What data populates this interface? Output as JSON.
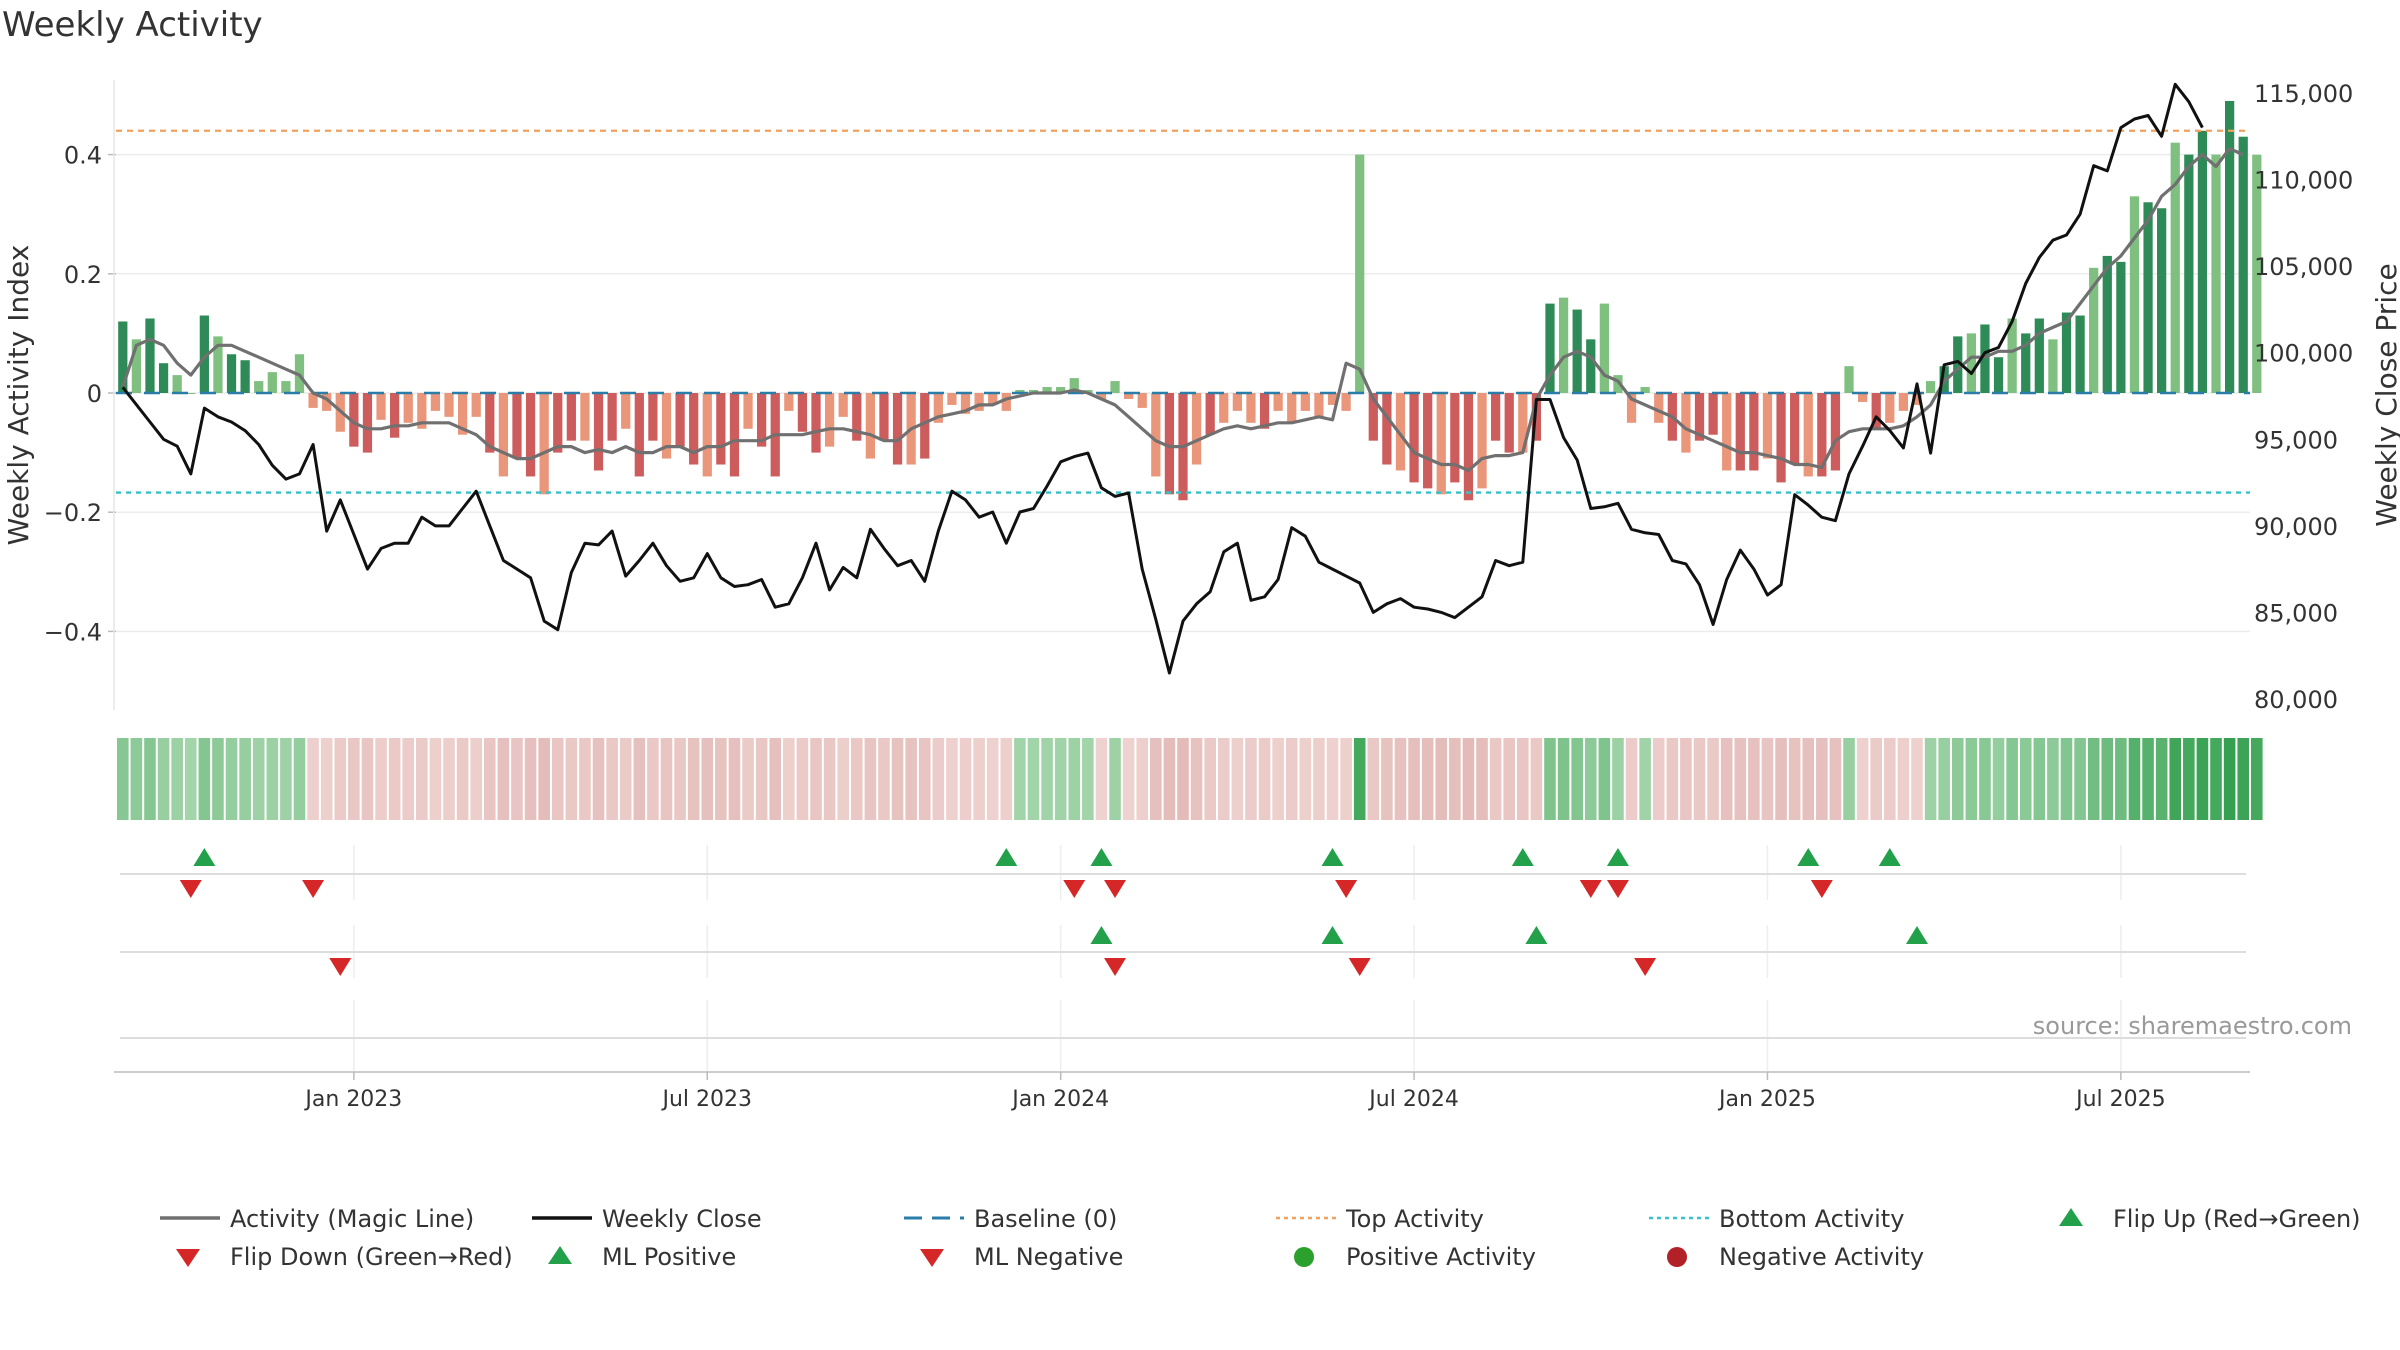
{
  "chart_data": {
    "type": "bar",
    "title": "Weekly Activity",
    "ylabel_left": "Weekly Activity Index",
    "ylabel_right": "Weekly Close Price",
    "source": "source: sharemaestro.com",
    "left_axis": {
      "ylim": [
        -0.53,
        0.53
      ],
      "ticks": [
        0.4,
        0.2,
        0,
        -0.2,
        -0.4
      ],
      "tick_labels": [
        "0.4",
        "0.2",
        "0",
        "−0.2",
        "−0.4"
      ]
    },
    "right_axis": {
      "ylim": [
        79500,
        115500
      ],
      "ticks": [
        115000,
        110000,
        105000,
        100000,
        95000,
        90000,
        85000,
        80000
      ],
      "tick_labels": [
        "115,000",
        "110,000",
        "105,000",
        "100,000",
        "95,000",
        "90,000",
        "85,000",
        "80,000"
      ]
    },
    "x_ticks": [
      {
        "label": "Jan 2023",
        "week": 17
      },
      {
        "label": "Jul 2023",
        "week": 43
      },
      {
        "label": "Jan 2024",
        "week": 69
      },
      {
        "label": "Jul 2024",
        "week": 95
      },
      {
        "label": "Jan 2025",
        "week": 121
      },
      {
        "label": "Jul 2025",
        "week": 147
      }
    ],
    "weeks": 157,
    "top_activity": 0.44,
    "bottom_activity": -0.167,
    "baseline": 0,
    "activity": [
      0.12,
      0.09,
      0.125,
      0.05,
      0.03,
      0.0,
      0.13,
      0.095,
      0.065,
      0.055,
      0.02,
      0.035,
      0.02,
      0.065,
      -0.025,
      -0.03,
      -0.065,
      -0.09,
      -0.1,
      -0.045,
      -0.075,
      -0.05,
      -0.06,
      -0.03,
      -0.04,
      -0.07,
      -0.04,
      -0.1,
      -0.14,
      -0.11,
      -0.14,
      -0.17,
      -0.1,
      -0.08,
      -0.08,
      -0.13,
      -0.08,
      -0.06,
      -0.14,
      -0.08,
      -0.11,
      -0.09,
      -0.12,
      -0.14,
      -0.12,
      -0.14,
      -0.06,
      -0.09,
      -0.14,
      -0.03,
      -0.065,
      -0.1,
      -0.09,
      -0.04,
      -0.08,
      -0.11,
      -0.08,
      -0.12,
      -0.12,
      -0.11,
      -0.05,
      -0.02,
      -0.035,
      -0.03,
      -0.02,
      -0.03,
      0.005,
      0.005,
      0.01,
      0.01,
      0.025,
      0.005,
      -0.01,
      0.02,
      -0.01,
      -0.025,
      -0.14,
      -0.17,
      -0.18,
      -0.12,
      -0.07,
      -0.05,
      -0.03,
      -0.05,
      -0.06,
      -0.03,
      -0.05,
      -0.03,
      -0.04,
      -0.02,
      -0.03,
      0.4,
      -0.08,
      -0.12,
      -0.13,
      -0.15,
      -0.16,
      -0.17,
      -0.15,
      -0.18,
      -0.16,
      -0.08,
      -0.1,
      -0.1,
      -0.08,
      0.15,
      0.16,
      0.14,
      0.09,
      0.15,
      0.03,
      -0.05,
      0.01,
      -0.05,
      -0.08,
      -0.1,
      -0.08,
      -0.07,
      -0.13,
      -0.13,
      -0.13,
      -0.11,
      -0.15,
      -0.12,
      -0.14,
      -0.14,
      -0.13,
      0.045,
      -0.015,
      -0.06,
      -0.05,
      -0.03,
      -0.02,
      0.02,
      0.045,
      0.095,
      0.1,
      0.115,
      0.06,
      0.125,
      0.1,
      0.125,
      0.09,
      0.135,
      0.13,
      0.21,
      0.23,
      0.22,
      0.33,
      0.32,
      0.31,
      0.42,
      0.4,
      0.44,
      0.4,
      0.49,
      0.43,
      0.4
    ],
    "magic_line": [
      0.01,
      0.08,
      0.09,
      0.08,
      0.05,
      0.03,
      0.06,
      0.08,
      0.08,
      0.07,
      0.06,
      0.05,
      0.04,
      0.03,
      0.0,
      -0.01,
      -0.03,
      -0.05,
      -0.06,
      -0.06,
      -0.055,
      -0.055,
      -0.05,
      -0.05,
      -0.05,
      -0.06,
      -0.07,
      -0.09,
      -0.1,
      -0.11,
      -0.11,
      -0.1,
      -0.09,
      -0.09,
      -0.1,
      -0.095,
      -0.1,
      -0.09,
      -0.1,
      -0.1,
      -0.09,
      -0.09,
      -0.1,
      -0.09,
      -0.09,
      -0.08,
      -0.08,
      -0.08,
      -0.07,
      -0.07,
      -0.07,
      -0.065,
      -0.06,
      -0.06,
      -0.065,
      -0.07,
      -0.08,
      -0.08,
      -0.06,
      -0.05,
      -0.04,
      -0.035,
      -0.03,
      -0.02,
      -0.02,
      -0.01,
      -0.005,
      0.0,
      0.0,
      0.0,
      0.005,
      0.0,
      -0.01,
      -0.02,
      -0.04,
      -0.06,
      -0.08,
      -0.09,
      -0.09,
      -0.08,
      -0.07,
      -0.06,
      -0.055,
      -0.06,
      -0.055,
      -0.05,
      -0.05,
      -0.045,
      -0.04,
      -0.045,
      0.05,
      0.04,
      -0.01,
      -0.04,
      -0.07,
      -0.1,
      -0.11,
      -0.12,
      -0.12,
      -0.13,
      -0.11,
      -0.105,
      -0.105,
      -0.1,
      -0.01,
      0.03,
      0.06,
      0.07,
      0.06,
      0.03,
      0.02,
      -0.01,
      -0.02,
      -0.03,
      -0.04,
      -0.06,
      -0.07,
      -0.08,
      -0.09,
      -0.1,
      -0.1,
      -0.105,
      -0.11,
      -0.12,
      -0.12,
      -0.125,
      -0.08,
      -0.065,
      -0.06,
      -0.06,
      -0.06,
      -0.055,
      -0.04,
      -0.02,
      0.02,
      0.04,
      0.06,
      0.06,
      0.07,
      0.07,
      0.08,
      0.1,
      0.11,
      0.12,
      0.15,
      0.18,
      0.21,
      0.23,
      0.26,
      0.29,
      0.33,
      0.35,
      0.38,
      0.4,
      0.38,
      0.41,
      0.4
    ],
    "weekly_close": [
      98000,
      97000,
      96000,
      95000,
      94600,
      93000,
      96800,
      96300,
      96000,
      95500,
      94700,
      93500,
      92700,
      93000,
      94700,
      89700,
      91500,
      89500,
      87500,
      88700,
      89000,
      89000,
      90500,
      90000,
      90000,
      91000,
      92000,
      90000,
      88000,
      87500,
      87000,
      84500,
      84000,
      87300,
      89000,
      88900,
      89700,
      87100,
      88000,
      89000,
      87700,
      86800,
      87000,
      88400,
      87000,
      86500,
      86600,
      86900,
      85300,
      85500,
      87000,
      89000,
      86300,
      87600,
      87000,
      89800,
      88700,
      87700,
      88000,
      86800,
      89700,
      92000,
      91500,
      90500,
      90800,
      89000,
      90800,
      91000,
      92300,
      93700,
      94000,
      94200,
      92200,
      91700,
      91900,
      87500,
      84600,
      81500,
      84500,
      85500,
      86200,
      88500,
      89000,
      85700,
      85900,
      86900,
      89900,
      89400,
      87900,
      87500,
      87100,
      86700,
      85000,
      85500,
      85800,
      85300,
      85200,
      85000,
      84700,
      85300,
      85900,
      88000,
      87700,
      87900,
      97300,
      97300,
      95100,
      93800,
      91000,
      91100,
      91300,
      89800,
      89600,
      89500,
      88000,
      87800,
      86600,
      84300,
      86900,
      88600,
      87500,
      86000,
      86600,
      91800,
      91200,
      90500,
      90300,
      93000,
      94600,
      96300,
      95500,
      94500,
      98200,
      94200,
      99300,
      99500,
      98800,
      100000,
      100300,
      101800,
      104000,
      105500,
      106500,
      106800,
      108000,
      110800,
      110500,
      113000,
      113500,
      113700,
      112500,
      115500,
      114500,
      113000
    ],
    "color_strip": [
      0.12,
      0.09,
      0.125,
      0.05,
      0.03,
      0.0,
      0.13,
      0.095,
      0.065,
      0.055,
      0.02,
      0.035,
      0.02,
      0.065,
      -0.025,
      -0.03,
      -0.065,
      -0.09,
      -0.1,
      -0.045,
      -0.075,
      -0.05,
      -0.06,
      -0.03,
      -0.04,
      -0.07,
      -0.04,
      -0.1,
      -0.14,
      -0.11,
      -0.14,
      -0.17,
      -0.1,
      -0.08,
      -0.08,
      -0.13,
      -0.08,
      -0.06,
      -0.14,
      -0.08,
      -0.11,
      -0.09,
      -0.12,
      -0.14,
      -0.12,
      -0.14,
      -0.06,
      -0.09,
      -0.14,
      -0.03,
      -0.065,
      -0.1,
      -0.09,
      -0.04,
      -0.08,
      -0.11,
      -0.08,
      -0.12,
      -0.12,
      -0.11,
      -0.05,
      -0.02,
      -0.035,
      -0.03,
      -0.02,
      -0.03,
      0.005,
      0.005,
      0.01,
      0.01,
      0.025,
      0.005,
      -0.01,
      0.02,
      -0.01,
      -0.025,
      -0.14,
      -0.17,
      -0.18,
      -0.12,
      -0.07,
      -0.05,
      -0.03,
      -0.05,
      -0.06,
      -0.03,
      -0.05,
      -0.03,
      -0.04,
      -0.02,
      -0.03,
      0.4,
      -0.08,
      -0.12,
      -0.13,
      -0.15,
      -0.16,
      -0.17,
      -0.15,
      -0.18,
      -0.16,
      -0.08,
      -0.1,
      -0.1,
      -0.08,
      0.15,
      0.16,
      0.14,
      0.09,
      0.15,
      0.03,
      -0.05,
      0.01,
      -0.05,
      -0.08,
      -0.1,
      -0.08,
      -0.07,
      -0.13,
      -0.13,
      -0.13,
      -0.11,
      -0.15,
      -0.12,
      -0.14,
      -0.14,
      -0.13,
      0.045,
      -0.015,
      -0.06,
      -0.05,
      -0.03,
      -0.02,
      0.02,
      0.045,
      0.095,
      0.1,
      0.115,
      0.06,
      0.125,
      0.1,
      0.125,
      0.09,
      0.135,
      0.13,
      0.21,
      0.23,
      0.22,
      0.33,
      0.32,
      0.31,
      0.42,
      0.4,
      0.44,
      0.4,
      0.49,
      0.43,
      0.4
    ],
    "flip_up_weeks": [
      6,
      65,
      72,
      89,
      103,
      110,
      124,
      130
    ],
    "flip_down_weeks": [
      5,
      14,
      70,
      73,
      90,
      108,
      110,
      125
    ],
    "ml_positive_weeks": [
      72,
      89,
      104,
      132
    ],
    "ml_negative_weeks": [
      16,
      73,
      91,
      112
    ],
    "legend": [
      {
        "label": "Activity (Magic Line)",
        "kind": "line",
        "color": "#707070"
      },
      {
        "label": "Weekly Close",
        "kind": "line",
        "color": "#111111"
      },
      {
        "label": "Baseline (0)",
        "kind": "dash",
        "color": "#2a7da8"
      },
      {
        "label": "Top Activity",
        "kind": "dot",
        "color": "#f0a060"
      },
      {
        "label": "Bottom Activity",
        "kind": "dot",
        "color": "#3bbfc8"
      },
      {
        "label": "Flip Up (Red→Green)",
        "kind": "up",
        "color": "#2ca02c"
      },
      {
        "label": "Flip Down (Green→Red)",
        "kind": "down",
        "color": "#d62728"
      },
      {
        "label": "ML Positive",
        "kind": "up",
        "color": "#2ca02c"
      },
      {
        "label": "ML Negative",
        "kind": "down",
        "color": "#d62728"
      },
      {
        "label": "Positive Activity",
        "kind": "circle",
        "color": "#2ca02c"
      },
      {
        "label": "Negative Activity",
        "kind": "circle",
        "color": "#b22028"
      }
    ],
    "colors": {
      "pos_dark": "#2e8b57",
      "pos_light": "#7fbf7f",
      "neg_dark": "#cd5c5c",
      "neg_light": "#e9967a",
      "grid": "#ececec",
      "axis": "#dddddd"
    }
  }
}
